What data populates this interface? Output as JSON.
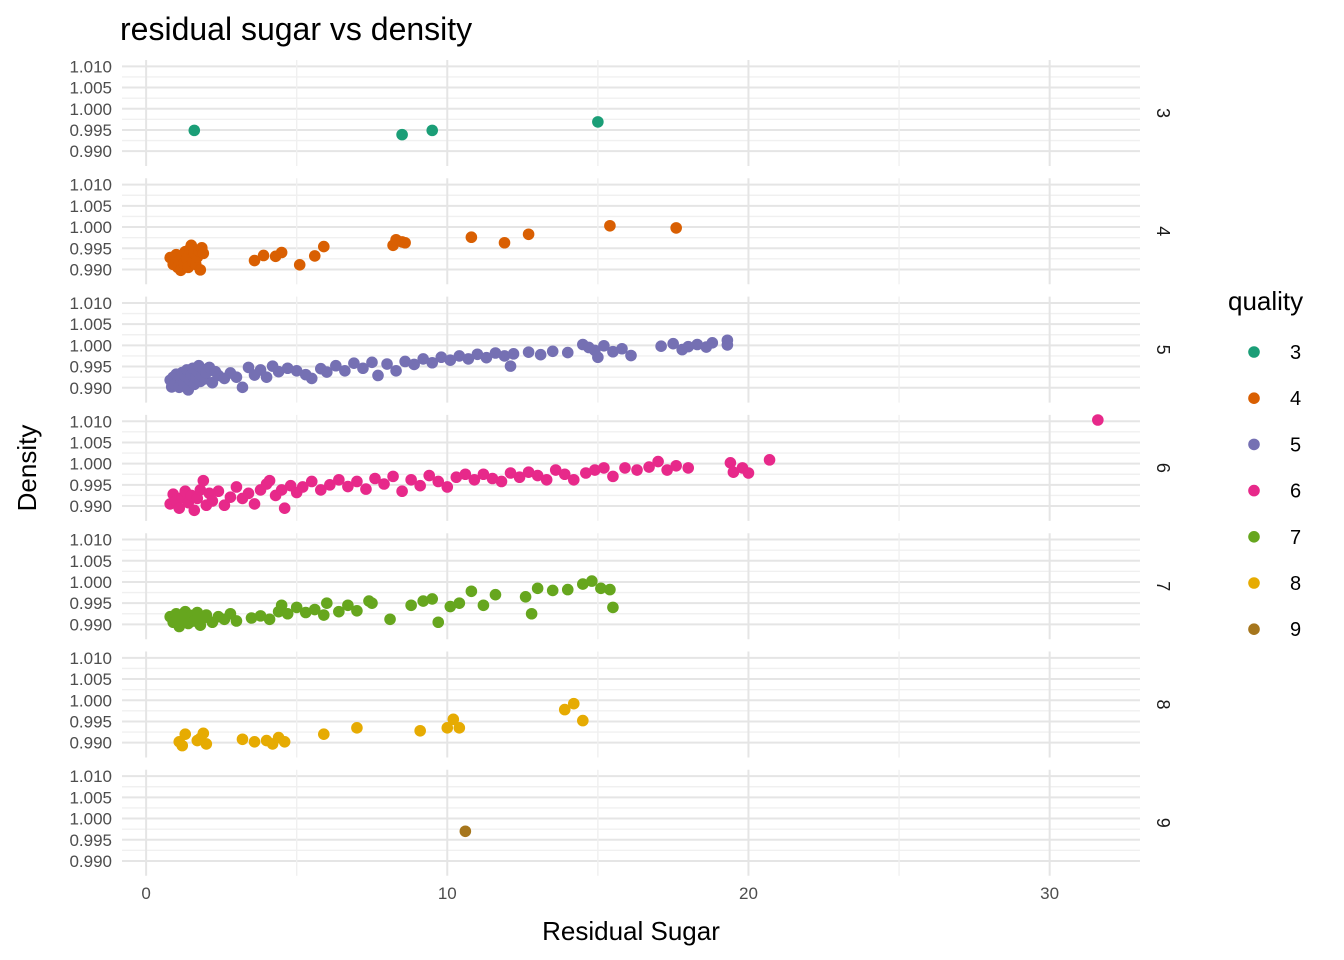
{
  "chart_data": {
    "type": "scatter",
    "title": "residual sugar vs density",
    "xlabel": "Residual Sugar",
    "ylabel": "Density",
    "xlim": [
      -0.8,
      33.0
    ],
    "ylim": [
      0.9865,
      1.0115
    ],
    "x_ticks": [
      0,
      10,
      20,
      30
    ],
    "x_tick_labels": [
      "0",
      "10",
      "20",
      "30"
    ],
    "y_ticks": [
      0.99,
      0.995,
      1.0,
      1.005,
      1.01
    ],
    "y_tick_labels": [
      "0.990",
      "0.995",
      "1.000",
      "1.005",
      "1.010"
    ],
    "facet_by": "quality",
    "legend": {
      "title": "quality",
      "placement": "right"
    },
    "grid": true,
    "panels": [
      {
        "label": "3",
        "name": "3",
        "color": "#1B9E77",
        "points": [
          [
            1.6,
            0.9949
          ],
          [
            8.5,
            0.9939
          ],
          [
            9.5,
            0.9949
          ],
          [
            15.0,
            0.9969
          ]
        ]
      },
      {
        "label": "4",
        "name": "4",
        "color": "#D95F02",
        "points": [
          [
            0.8,
            0.9928
          ],
          [
            0.9,
            0.9912
          ],
          [
            1.0,
            0.9935
          ],
          [
            1.05,
            0.9905
          ],
          [
            1.1,
            0.9921
          ],
          [
            1.15,
            0.9898
          ],
          [
            1.2,
            0.9931
          ],
          [
            1.25,
            0.9915
          ],
          [
            1.3,
            0.9942
          ],
          [
            1.35,
            0.9926
          ],
          [
            1.4,
            0.9905
          ],
          [
            1.45,
            0.9948
          ],
          [
            1.5,
            0.9957
          ],
          [
            1.55,
            0.9918
          ],
          [
            1.6,
            0.9938
          ],
          [
            1.65,
            0.9912
          ],
          [
            1.7,
            0.9929
          ],
          [
            1.75,
            0.9944
          ],
          [
            1.8,
            0.9899
          ],
          [
            1.85,
            0.9951
          ],
          [
            1.9,
            0.9938
          ],
          [
            3.6,
            0.9921
          ],
          [
            3.9,
            0.9933
          ],
          [
            4.3,
            0.9931
          ],
          [
            4.5,
            0.994
          ],
          [
            5.1,
            0.9911
          ],
          [
            5.6,
            0.9932
          ],
          [
            5.9,
            0.9954
          ],
          [
            8.2,
            0.9957
          ],
          [
            8.3,
            0.997
          ],
          [
            8.5,
            0.9965
          ],
          [
            8.6,
            0.9963
          ],
          [
            10.8,
            0.9976
          ],
          [
            11.9,
            0.9963
          ],
          [
            12.7,
            0.9983
          ],
          [
            15.4,
            1.0003
          ],
          [
            17.6,
            0.9998
          ]
        ]
      },
      {
        "label": "5",
        "name": "5",
        "color": "#7570B3",
        "points": [
          [
            0.8,
            0.9918
          ],
          [
            0.85,
            0.9902
          ],
          [
            0.9,
            0.9925
          ],
          [
            0.95,
            0.9908
          ],
          [
            1.0,
            0.9932
          ],
          [
            1.05,
            0.9915
          ],
          [
            1.1,
            0.9901
          ],
          [
            1.15,
            0.9922
          ],
          [
            1.2,
            0.9936
          ],
          [
            1.25,
            0.9912
          ],
          [
            1.3,
            0.9928
          ],
          [
            1.35,
            0.9942
          ],
          [
            1.4,
            0.9895
          ],
          [
            1.45,
            0.9918
          ],
          [
            1.5,
            0.9931
          ],
          [
            1.55,
            0.9946
          ],
          [
            1.6,
            0.9908
          ],
          [
            1.65,
            0.9924
          ],
          [
            1.7,
            0.9939
          ],
          [
            1.75,
            0.9952
          ],
          [
            1.8,
            0.9915
          ],
          [
            1.85,
            0.9929
          ],
          [
            1.9,
            0.9943
          ],
          [
            1.95,
            0.9921
          ],
          [
            2.0,
            0.9935
          ],
          [
            2.1,
            0.9948
          ],
          [
            2.2,
            0.9912
          ],
          [
            2.3,
            0.9938
          ],
          [
            2.4,
            0.9929
          ],
          [
            2.6,
            0.9922
          ],
          [
            2.8,
            0.9935
          ],
          [
            3.0,
            0.9925
          ],
          [
            3.2,
            0.9901
          ],
          [
            3.4,
            0.9948
          ],
          [
            3.6,
            0.993
          ],
          [
            3.8,
            0.9942
          ],
          [
            4.0,
            0.9925
          ],
          [
            4.2,
            0.9951
          ],
          [
            4.4,
            0.9938
          ],
          [
            4.7,
            0.9946
          ],
          [
            5.0,
            0.994
          ],
          [
            5.3,
            0.9931
          ],
          [
            5.5,
            0.9922
          ],
          [
            5.8,
            0.9945
          ],
          [
            6.0,
            0.9937
          ],
          [
            6.3,
            0.9952
          ],
          [
            6.6,
            0.994
          ],
          [
            6.9,
            0.9958
          ],
          [
            7.2,
            0.9946
          ],
          [
            7.5,
            0.996
          ],
          [
            7.7,
            0.9929
          ],
          [
            8.0,
            0.9956
          ],
          [
            8.3,
            0.994
          ],
          [
            8.6,
            0.9962
          ],
          [
            8.9,
            0.9955
          ],
          [
            9.2,
            0.9968
          ],
          [
            9.5,
            0.9959
          ],
          [
            9.8,
            0.9972
          ],
          [
            10.1,
            0.9965
          ],
          [
            10.4,
            0.9975
          ],
          [
            10.7,
            0.9968
          ],
          [
            11.0,
            0.9979
          ],
          [
            11.3,
            0.9971
          ],
          [
            11.6,
            0.9982
          ],
          [
            11.9,
            0.9975
          ],
          [
            12.2,
            0.998
          ],
          [
            12.1,
            0.9951
          ],
          [
            12.7,
            0.9984
          ],
          [
            13.1,
            0.9978
          ],
          [
            13.5,
            0.9986
          ],
          [
            14.0,
            0.9983
          ],
          [
            14.5,
            1.0002
          ],
          [
            14.7,
            0.9995
          ],
          [
            14.9,
            0.9988
          ],
          [
            15.0,
            0.9972
          ],
          [
            15.2,
            0.9999
          ],
          [
            15.5,
            0.9985
          ],
          [
            15.8,
            0.9992
          ],
          [
            16.1,
            0.9976
          ],
          [
            17.1,
            0.9998
          ],
          [
            17.5,
            1.0004
          ],
          [
            17.8,
            0.999
          ],
          [
            18.0,
            0.9997
          ],
          [
            18.3,
            1.0002
          ],
          [
            18.6,
            0.9996
          ],
          [
            18.8,
            1.0006
          ],
          [
            19.3,
            1.0001
          ],
          [
            19.3,
            1.0012
          ]
        ]
      },
      {
        "label": "6",
        "name": "6",
        "color": "#E7298A",
        "points": [
          [
            0.8,
            0.9905
          ],
          [
            0.9,
            0.9928
          ],
          [
            1.0,
            0.9912
          ],
          [
            1.1,
            0.9895
          ],
          [
            1.2,
            0.992
          ],
          [
            1.3,
            0.9935
          ],
          [
            1.4,
            0.9908
          ],
          [
            1.5,
            0.9925
          ],
          [
            1.6,
            0.989
          ],
          [
            1.7,
            0.9918
          ],
          [
            1.8,
            0.9938
          ],
          [
            1.9,
            0.996
          ],
          [
            2.0,
            0.9902
          ],
          [
            2.1,
            0.993
          ],
          [
            2.2,
            0.9912
          ],
          [
            2.4,
            0.9935
          ],
          [
            2.6,
            0.9902
          ],
          [
            2.8,
            0.9921
          ],
          [
            3.0,
            0.9945
          ],
          [
            3.2,
            0.9918
          ],
          [
            3.4,
            0.993
          ],
          [
            3.6,
            0.9905
          ],
          [
            3.8,
            0.9938
          ],
          [
            4.0,
            0.9952
          ],
          [
            4.1,
            0.996
          ],
          [
            4.3,
            0.9925
          ],
          [
            4.5,
            0.9938
          ],
          [
            4.6,
            0.9895
          ],
          [
            4.8,
            0.9948
          ],
          [
            5.0,
            0.9932
          ],
          [
            5.2,
            0.9945
          ],
          [
            5.5,
            0.9958
          ],
          [
            5.8,
            0.9938
          ],
          [
            6.1,
            0.995
          ],
          [
            6.4,
            0.9962
          ],
          [
            6.7,
            0.9946
          ],
          [
            7.0,
            0.9958
          ],
          [
            7.3,
            0.994
          ],
          [
            7.6,
            0.9965
          ],
          [
            7.9,
            0.9952
          ],
          [
            8.2,
            0.997
          ],
          [
            8.5,
            0.9935
          ],
          [
            8.8,
            0.9962
          ],
          [
            9.1,
            0.9948
          ],
          [
            9.4,
            0.9972
          ],
          [
            9.7,
            0.9958
          ],
          [
            10.0,
            0.9945
          ],
          [
            10.3,
            0.9968
          ],
          [
            10.6,
            0.9975
          ],
          [
            10.9,
            0.9962
          ],
          [
            11.2,
            0.9975
          ],
          [
            11.5,
            0.9965
          ],
          [
            11.8,
            0.9958
          ],
          [
            12.1,
            0.9978
          ],
          [
            12.4,
            0.9968
          ],
          [
            12.7,
            0.998
          ],
          [
            13.0,
            0.9972
          ],
          [
            13.3,
            0.9962
          ],
          [
            13.6,
            0.9985
          ],
          [
            13.9,
            0.9975
          ],
          [
            14.2,
            0.9962
          ],
          [
            14.6,
            0.9978
          ],
          [
            14.9,
            0.9985
          ],
          [
            15.2,
            0.999
          ],
          [
            15.5,
            0.997
          ],
          [
            15.9,
            0.999
          ],
          [
            16.3,
            0.9985
          ],
          [
            16.7,
            0.9992
          ],
          [
            17.0,
            1.0005
          ],
          [
            17.3,
            0.9985
          ],
          [
            17.6,
            0.9995
          ],
          [
            18.0,
            0.999
          ],
          [
            19.4,
            1.0002
          ],
          [
            19.5,
            0.998
          ],
          [
            19.8,
            0.999
          ],
          [
            20.0,
            0.9978
          ],
          [
            20.7,
            1.0009
          ],
          [
            31.6,
            1.0103
          ]
        ]
      },
      {
        "label": "7",
        "name": "7",
        "color": "#66A61E",
        "points": [
          [
            0.8,
            0.9918
          ],
          [
            0.9,
            0.9905
          ],
          [
            1.0,
            0.9925
          ],
          [
            1.1,
            0.9895
          ],
          [
            1.2,
            0.9912
          ],
          [
            1.3,
            0.993
          ],
          [
            1.4,
            0.9902
          ],
          [
            1.5,
            0.9921
          ],
          [
            1.6,
            0.9908
          ],
          [
            1.7,
            0.9928
          ],
          [
            1.8,
            0.9898
          ],
          [
            1.9,
            0.9915
          ],
          [
            2.0,
            0.9922
          ],
          [
            2.2,
            0.9905
          ],
          [
            2.4,
            0.9918
          ],
          [
            2.6,
            0.9912
          ],
          [
            2.8,
            0.9925
          ],
          [
            3.0,
            0.9908
          ],
          [
            3.5,
            0.9915
          ],
          [
            3.8,
            0.992
          ],
          [
            4.1,
            0.9912
          ],
          [
            4.4,
            0.993
          ],
          [
            4.5,
            0.9945
          ],
          [
            4.7,
            0.9925
          ],
          [
            5.0,
            0.994
          ],
          [
            5.3,
            0.9928
          ],
          [
            5.6,
            0.9935
          ],
          [
            5.9,
            0.9922
          ],
          [
            6.0,
            0.995
          ],
          [
            6.4,
            0.993
          ],
          [
            6.7,
            0.9945
          ],
          [
            7.0,
            0.9932
          ],
          [
            7.4,
            0.9955
          ],
          [
            7.5,
            0.995
          ],
          [
            8.1,
            0.9912
          ],
          [
            8.8,
            0.9945
          ],
          [
            9.2,
            0.9955
          ],
          [
            9.5,
            0.996
          ],
          [
            9.7,
            0.9905
          ],
          [
            10.1,
            0.9942
          ],
          [
            10.4,
            0.995
          ],
          [
            10.8,
            0.9978
          ],
          [
            11.2,
            0.9945
          ],
          [
            11.6,
            0.997
          ],
          [
            12.6,
            0.9965
          ],
          [
            12.8,
            0.9925
          ],
          [
            13.0,
            0.9985
          ],
          [
            13.5,
            0.998
          ],
          [
            14.0,
            0.9982
          ],
          [
            14.5,
            0.9995
          ],
          [
            14.8,
            1.0002
          ],
          [
            15.1,
            0.9985
          ],
          [
            15.4,
            0.9982
          ],
          [
            15.5,
            0.994
          ]
        ]
      },
      {
        "label": "8",
        "name": "8",
        "color": "#E6AB02",
        "points": [
          [
            1.1,
            0.9902
          ],
          [
            1.2,
            0.9893
          ],
          [
            1.3,
            0.992
          ],
          [
            1.7,
            0.9905
          ],
          [
            1.8,
            0.991
          ],
          [
            1.9,
            0.9922
          ],
          [
            2.0,
            0.9897
          ],
          [
            3.2,
            0.9908
          ],
          [
            3.6,
            0.9902
          ],
          [
            4.0,
            0.9905
          ],
          [
            4.2,
            0.9897
          ],
          [
            4.4,
            0.9912
          ],
          [
            4.6,
            0.9902
          ],
          [
            5.9,
            0.992
          ],
          [
            7.0,
            0.9935
          ],
          [
            9.1,
            0.9928
          ],
          [
            10.0,
            0.9935
          ],
          [
            10.2,
            0.9955
          ],
          [
            10.4,
            0.9935
          ],
          [
            13.9,
            0.9978
          ],
          [
            14.2,
            0.9992
          ],
          [
            14.5,
            0.9952
          ]
        ]
      },
      {
        "label": "9",
        "name": "9",
        "color": "#A6761D",
        "points": [
          [
            10.6,
            0.997
          ]
        ]
      }
    ]
  }
}
